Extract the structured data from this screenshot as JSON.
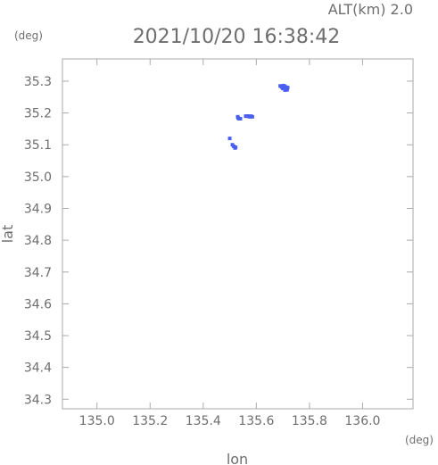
{
  "header": {
    "alt_label": "ALT(km) 2.0",
    "timestamp": "2021/10/20 16:38:42"
  },
  "chart_data": {
    "type": "scatter",
    "title": "2021/10/20 16:38:42",
    "subtitle": "ALT(km) 2.0",
    "xlabel": "lon",
    "ylabel": "lat",
    "x_unit": "(deg)",
    "y_unit": "(deg)",
    "xlim": [
      134.87,
      136.19
    ],
    "ylim": [
      34.27,
      35.37
    ],
    "x_ticks": [
      "135.0",
      "135.2",
      "135.4",
      "135.6",
      "135.8",
      "136.0"
    ],
    "y_ticks": [
      "34.3",
      "34.4",
      "34.5",
      "34.6",
      "34.7",
      "34.8",
      "34.9",
      "35.0",
      "35.1",
      "35.2",
      "35.3"
    ],
    "grid": false,
    "point_color": "#4a5ff0",
    "series": [
      {
        "points": [
          [
            135.5,
            35.12
          ],
          [
            135.51,
            35.1
          ],
          [
            135.515,
            35.095
          ],
          [
            135.52,
            35.09
          ],
          [
            135.522,
            35.092
          ],
          [
            135.53,
            35.188
          ],
          [
            135.532,
            35.184
          ],
          [
            135.535,
            35.182
          ],
          [
            135.54,
            35.182
          ],
          [
            135.56,
            35.19
          ],
          [
            135.565,
            35.19
          ],
          [
            135.57,
            35.19
          ],
          [
            135.575,
            35.188
          ],
          [
            135.58,
            35.19
          ],
          [
            135.585,
            35.188
          ],
          [
            135.69,
            35.285
          ],
          [
            135.695,
            35.283
          ],
          [
            135.7,
            35.28
          ],
          [
            135.705,
            35.278
          ],
          [
            135.71,
            35.282
          ],
          [
            135.712,
            35.275
          ],
          [
            135.715,
            35.276
          ],
          [
            135.7,
            35.277
          ],
          [
            135.706,
            35.284
          ],
          [
            135.718,
            35.28
          ],
          [
            135.708,
            35.272
          ],
          [
            135.697,
            35.281
          ],
          [
            135.713,
            35.279
          ],
          [
            135.702,
            35.286
          ],
          [
            135.716,
            35.273
          ]
        ]
      }
    ]
  }
}
